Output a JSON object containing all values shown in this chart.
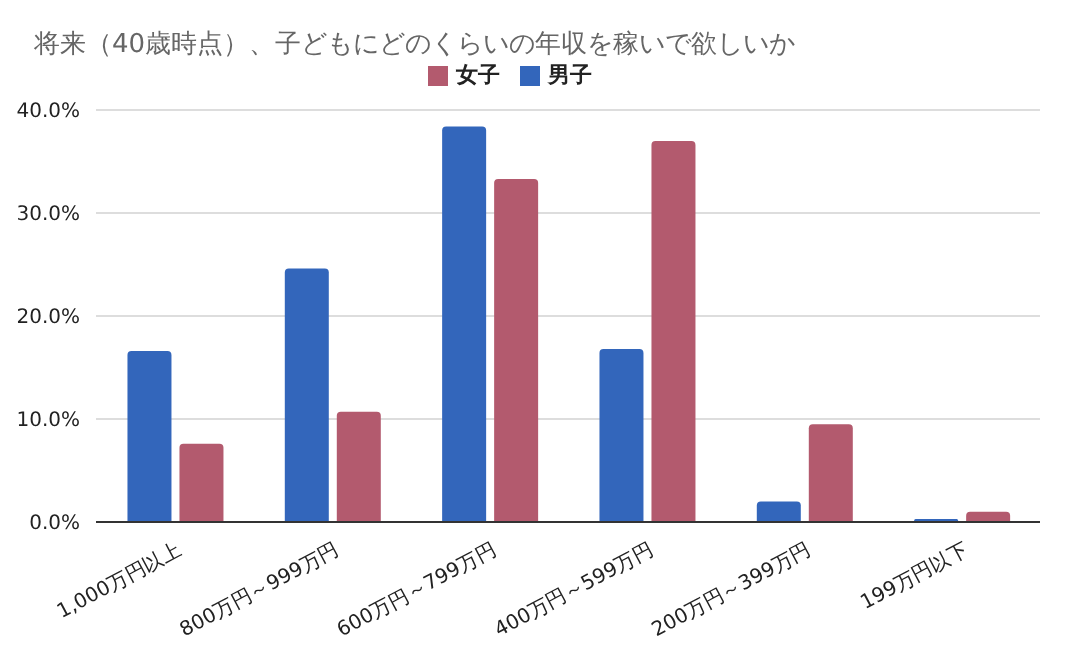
{
  "chart_data": {
    "type": "bar",
    "title": "将来（40歳時点）、子どもにどのくらいの年収を稼いで欲しいか",
    "categories": [
      "1,000万円以上",
      "800万円～999万円",
      "600万円～799万円",
      "400万円～599万円",
      "200万円～399万円",
      "199万円以下"
    ],
    "series": [
      {
        "name": "男子",
        "color": "#3366bb",
        "values": [
          16.6,
          24.6,
          38.4,
          16.8,
          2.0,
          0.3
        ]
      },
      {
        "name": "女子",
        "color": "#b35a6e",
        "values": [
          7.6,
          10.7,
          33.3,
          37.0,
          9.5,
          1.0
        ]
      }
    ],
    "ylim": [
      0,
      40
    ],
    "yticks": [
      {
        "value": 0,
        "label": "0.0%"
      },
      {
        "value": 10,
        "label": "10.0%"
      },
      {
        "value": 20,
        "label": "20.0%"
      },
      {
        "value": 30,
        "label": "30.0%"
      },
      {
        "value": 40,
        "label": "40.0%"
      }
    ],
    "grid": "y",
    "legend": "top"
  }
}
